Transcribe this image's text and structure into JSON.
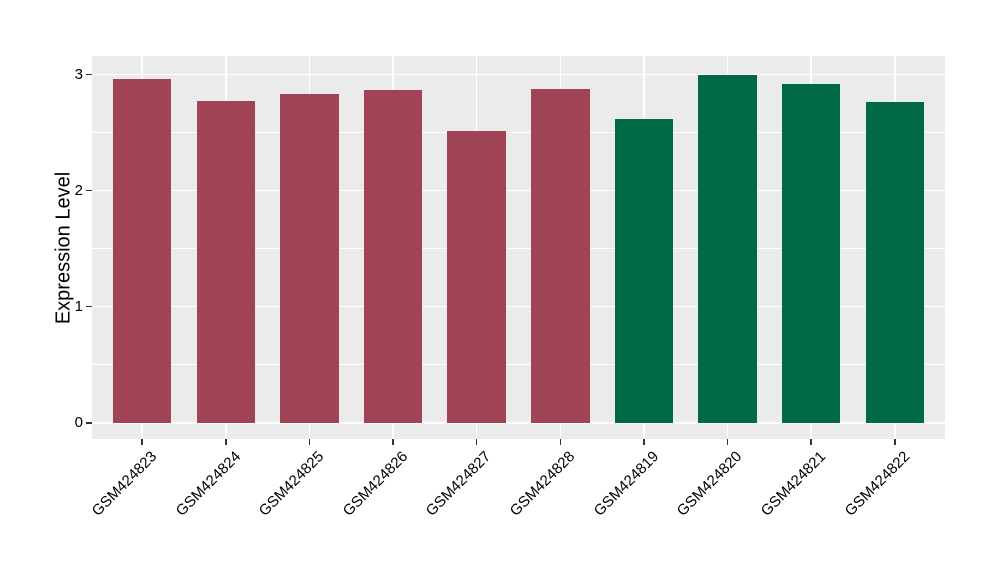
{
  "chart_data": {
    "type": "bar",
    "title": "",
    "xlabel": "",
    "ylabel": "Expression Level",
    "categories": [
      "GSM424823",
      "GSM424824",
      "GSM424825",
      "GSM424826",
      "GSM424827",
      "GSM424828",
      "GSM424819",
      "GSM424820",
      "GSM424821",
      "GSM424822"
    ],
    "values": [
      2.96,
      2.77,
      2.83,
      2.87,
      2.51,
      2.88,
      2.62,
      3.0,
      2.92,
      2.76
    ],
    "bar_colors": [
      "#A04355",
      "#A04355",
      "#A04355",
      "#A04355",
      "#A04355",
      "#A04355",
      "#006946",
      "#006946",
      "#006946",
      "#006946"
    ],
    "ylim": [
      -0.14,
      3.16
    ],
    "yticks": [
      0,
      1,
      2,
      3
    ],
    "yminor": [
      0.5,
      1.5,
      2.5
    ],
    "grid": true,
    "legend": "none",
    "x_tick_rotation_deg": 45
  },
  "style": {
    "page_bg": "#FFFFFF",
    "panel_bg": "#EBEBEB",
    "grid_color": "#FFFFFF",
    "text_color": "#000000",
    "tick_color": "#333333",
    "bar_red": "#A04355",
    "bar_green": "#006946"
  }
}
